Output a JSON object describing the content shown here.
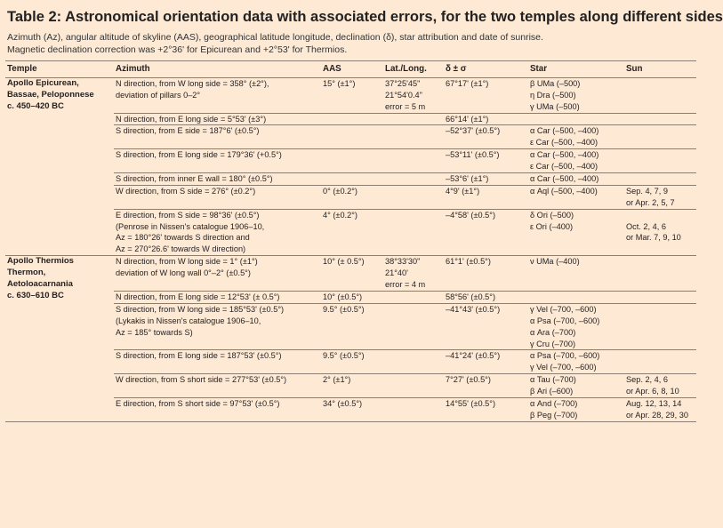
{
  "title": "Table 2: Astronomical orientation data with associated errors, for the two temples along different sides",
  "description": [
    "Azimuth (Az), angular altitude of skyline (AAS), geographical latitude longitude, declination (δ), star attribution and date of sunrise.",
    "Magnetic declination correction was +2°36' for Epicurean and +2°53' for Thermios."
  ],
  "headers": [
    "Temple",
    "Azimuth",
    "AAS",
    "Lat./Long.",
    "δ ± σ",
    "Star",
    "Sun"
  ],
  "groups": [
    {
      "temple": [
        "Apollo Epicurean,",
        "Bassae, Peloponnese",
        "c. 450–420 BC"
      ],
      "rows": [
        {
          "azimuth": [
            "N direction, from W long side = 358° (±2°),",
            "deviation of pillars 0–2°"
          ],
          "aas": [
            "15° (±1°)"
          ],
          "latlong": [
            "37°25'45\"",
            "21°54'0.4\"",
            "error = 5 m"
          ],
          "decl": [
            "67°17' (±1°)"
          ],
          "star": [
            "β UMa (–500)",
            "η Dra (–500)",
            "γ UMa (–500)"
          ],
          "sun": []
        },
        {
          "azimuth": [
            "N direction, from E long side = 5°53' (±3°)"
          ],
          "aas": [],
          "latlong": [],
          "decl": [
            "66°14' (±1°)"
          ],
          "star": [],
          "sun": []
        },
        {
          "azimuth": [
            "S direction, from E side = 187°6' (±0.5°)"
          ],
          "aas": [],
          "latlong": [],
          "decl": [
            "–52°37' (±0.5°)"
          ],
          "star": [
            "α Car (–500, –400)",
            "ε Car (–500, –400)"
          ],
          "sun": []
        },
        {
          "azimuth": [
            "S direction, from E long side = 179°36' (+0.5°)"
          ],
          "aas": [],
          "latlong": [],
          "decl": [
            "–53°11' (±0.5°)"
          ],
          "star": [
            "α Car (–500, –400)",
            "ε Car (–500, –400)"
          ],
          "sun": []
        },
        {
          "azimuth": [
            "S direction, from inner E wall = 180° (±0.5°)"
          ],
          "aas": [],
          "latlong": [],
          "decl": [
            "–53°6' (±1°)"
          ],
          "star": [
            "α Car (–500, –400)"
          ],
          "sun": []
        },
        {
          "azimuth": [
            "W direction, from S side = 276° (±0.2°)"
          ],
          "aas": [
            "0° (±0.2°)"
          ],
          "latlong": [],
          "decl": [
            "4°9' (±1°)"
          ],
          "star": [
            "α Aql (–500, –400)"
          ],
          "sun": [
            "Sep. 4, 7, 9",
            "or Apr. 2, 5, 7"
          ]
        },
        {
          "azimuth": [
            "E direction, from S side = 98°36' (±0.5°)",
            "(Penrose in Nissen's catalogue 1906–10,",
            "Az = 180°26' towards S direction and",
            "Az = 270°26.6' towards W direction)"
          ],
          "aas": [
            "4° (±0.2°)"
          ],
          "latlong": [],
          "decl": [
            "–4°58' (±0.5°)"
          ],
          "star": [
            "δ Ori (–500)",
            "ε Ori (–400)"
          ],
          "sun": [
            "",
            "Oct. 2, 4, 6",
            "or Mar. 7, 9, 10"
          ]
        }
      ]
    },
    {
      "temple": [
        "Apollo Thermios",
        "Thermon,",
        "Aetoloacarnania",
        "c. 630–610 BC"
      ],
      "rows": [
        {
          "azimuth": [
            "N direction, from W long side = 1° (±1°)",
            "deviation of W long wall 0°–2° (±0.5°)"
          ],
          "aas": [
            "10° (± 0.5°)"
          ],
          "latlong": [
            "38°33'30\"",
            "21°40'",
            "error = 4 m"
          ],
          "decl": [
            "61°1' (±0.5°)"
          ],
          "star": [
            "ν UMa (–400)"
          ],
          "sun": []
        },
        {
          "azimuth": [
            "N direction, from E long side = 12°53' (± 0.5°)"
          ],
          "aas": [
            "10° (±0.5°)"
          ],
          "latlong": [],
          "decl": [
            "58°56' (±0.5°)"
          ],
          "star": [],
          "sun": []
        },
        {
          "azimuth": [
            "S direction, from W long side = 185°53' (±0.5°)",
            "(Lykakis in Nissen's catalogue 1906–10,",
            "Az = 185° towards S)"
          ],
          "aas": [
            "9.5° (±0.5°)"
          ],
          "latlong": [],
          "decl": [
            "–41°43' (±0.5°)"
          ],
          "star": [
            "γ Vel (–700, –600)",
            "α Psa (–700, –600)",
            "α Ara (–700)",
            "γ Cru (–700)"
          ],
          "sun": []
        },
        {
          "azimuth": [
            "S direction, from E long side = 187°53' (±0.5°)"
          ],
          "aas": [
            "9.5° (±0.5°)"
          ],
          "latlong": [],
          "decl": [
            "–41°24' (±0.5°)"
          ],
          "star": [
            "α Psa (–700, –600)",
            "γ Vel (–700, –600)"
          ],
          "sun": []
        },
        {
          "azimuth": [
            "W direction, from S short side = 277°53' (±0.5°)"
          ],
          "aas": [
            "2° (±1°)"
          ],
          "latlong": [],
          "decl": [
            "7°27' (±0.5°)"
          ],
          "star": [
            "α Tau (–700)",
            "β Ari (–600)"
          ],
          "sun": [
            "Sep. 2, 4, 6",
            "or Apr. 6, 8, 10"
          ]
        },
        {
          "azimuth": [
            "E direction, from S short side = 97°53' (±0.5°)"
          ],
          "aas": [
            "34° (±0.5°)"
          ],
          "latlong": [],
          "decl": [
            "14°55' (±0.5°)"
          ],
          "star": [
            "α And (–700)",
            "β Peg (–700)"
          ],
          "sun": [
            "Aug. 12, 13, 14",
            "or Apr. 28, 29, 30"
          ]
        }
      ]
    }
  ]
}
